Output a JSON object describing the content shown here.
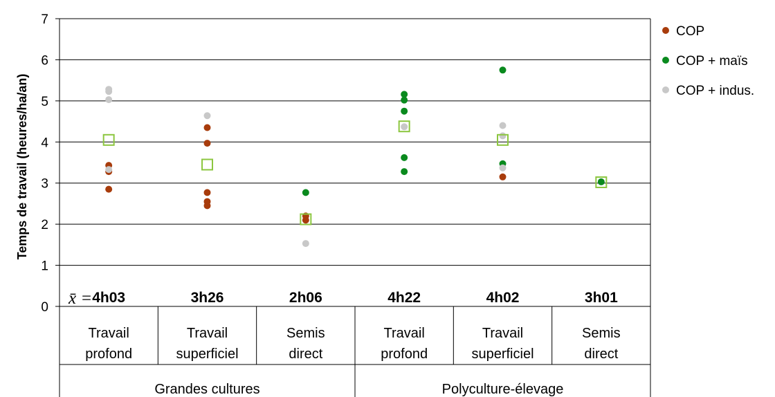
{
  "chart_data": {
    "type": "scatter",
    "ylabel": "Temps de travail (heures/ha/an)",
    "ylim": [
      0,
      7
    ],
    "yticks": [
      "0",
      "1",
      "2",
      "3",
      "4",
      "5",
      "6",
      "7"
    ],
    "grid": true,
    "legend_position": "right",
    "mean_prefix": "x̄ =",
    "groups": [
      {
        "label": "Grandes cultures",
        "categories": [
          0,
          1,
          2
        ]
      },
      {
        "label": "Polyculture-élevage",
        "categories": [
          3,
          4,
          5
        ]
      }
    ],
    "categories": [
      {
        "line1": "Travail",
        "line2": "profond",
        "mean_label": "4h03",
        "mean_value": 4.05
      },
      {
        "line1": "Travail",
        "line2": "superficiel",
        "mean_label": "3h26",
        "mean_value": 3.45
      },
      {
        "line1": "Semis",
        "line2": "direct",
        "mean_label": "2h06",
        "mean_value": 2.12
      },
      {
        "line1": "Travail",
        "line2": "profond",
        "mean_label": "4h22",
        "mean_value": 4.38
      },
      {
        "line1": "Travail",
        "line2": "superficiel",
        "mean_label": "4h02",
        "mean_value": 4.05
      },
      {
        "line1": "Semis",
        "line2": "direct",
        "mean_label": "3h01",
        "mean_value": 3.02
      }
    ],
    "series": [
      {
        "name": "COP",
        "color": "#a83c0c",
        "points": [
          {
            "cat": 0,
            "y": 3.43
          },
          {
            "cat": 0,
            "y": 3.28
          },
          {
            "cat": 0,
            "y": 2.85
          },
          {
            "cat": 1,
            "y": 4.35
          },
          {
            "cat": 1,
            "y": 3.97
          },
          {
            "cat": 1,
            "y": 2.77
          },
          {
            "cat": 1,
            "y": 2.55
          },
          {
            "cat": 1,
            "y": 2.45
          },
          {
            "cat": 2,
            "y": 2.2
          },
          {
            "cat": 2,
            "y": 2.1
          },
          {
            "cat": 4,
            "y": 3.15
          }
        ]
      },
      {
        "name": "COP + maïs",
        "color": "#0a8a1e",
        "points": [
          {
            "cat": 2,
            "y": 2.77
          },
          {
            "cat": 3,
            "y": 5.16
          },
          {
            "cat": 3,
            "y": 5.02
          },
          {
            "cat": 3,
            "y": 4.75
          },
          {
            "cat": 3,
            "y": 3.62
          },
          {
            "cat": 3,
            "y": 3.28
          },
          {
            "cat": 4,
            "y": 5.75
          },
          {
            "cat": 4,
            "y": 3.47
          },
          {
            "cat": 5,
            "y": 3.03
          }
        ]
      },
      {
        "name": "COP + indus.",
        "color": "#c8c8c8",
        "points": [
          {
            "cat": 0,
            "y": 5.28
          },
          {
            "cat": 0,
            "y": 5.23
          },
          {
            "cat": 0,
            "y": 5.03
          },
          {
            "cat": 0,
            "y": 3.33
          },
          {
            "cat": 1,
            "y": 4.64
          },
          {
            "cat": 2,
            "y": 1.53
          },
          {
            "cat": 3,
            "y": 4.37
          },
          {
            "cat": 4,
            "y": 4.4
          },
          {
            "cat": 4,
            "y": 4.15
          },
          {
            "cat": 4,
            "y": 3.37
          }
        ]
      }
    ],
    "mean_marker_color": "#8cc63f"
  }
}
